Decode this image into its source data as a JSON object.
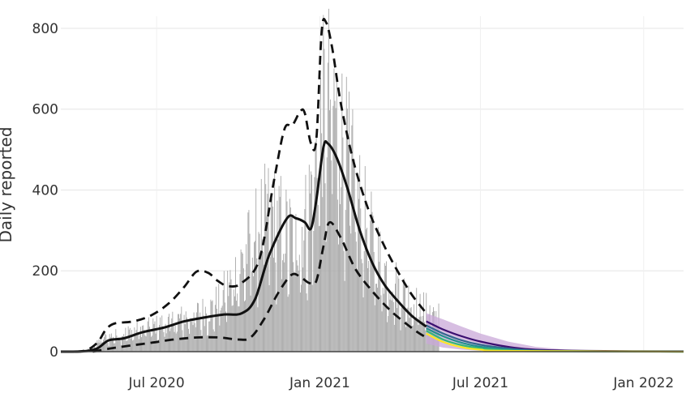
{
  "chart_data": {
    "type": "bar",
    "title": "",
    "xlabel": "",
    "ylabel": "Daily reported",
    "ylim": [
      0,
      830
    ],
    "xlim": [
      "2020-03-15",
      "2022-02-15"
    ],
    "grid": true,
    "legend": "none",
    "x_ticks": [
      {
        "date": "2020-07-01",
        "label": "Jul 2020"
      },
      {
        "date": "2021-01-01",
        "label": "Jan 2021"
      },
      {
        "date": "2021-07-01",
        "label": "Jul 2021"
      },
      {
        "date": "2022-01-01",
        "label": "Jan 2022"
      }
    ],
    "y_ticks": [
      0,
      200,
      400,
      600,
      800
    ],
    "colors": {
      "bars": "#a6a6a6",
      "median": "#111111",
      "bounds": "#111111",
      "forecast_band": "#c9a8d8",
      "forecast_band_inner": "#7fb8c9",
      "forecast_lines": [
        "#3b0f70",
        "#31688e",
        "#21918c",
        "#35b779",
        "#fde725"
      ]
    },
    "observed": {
      "start_date": "2020-03-20",
      "end_date": "2021-05-15",
      "anchors": [
        [
          "2020-03-20",
          0
        ],
        [
          "2020-04-10",
          2
        ],
        [
          "2020-04-20",
          10
        ],
        [
          "2020-05-01",
          35
        ],
        [
          "2020-05-15",
          42
        ],
        [
          "2020-06-01",
          52
        ],
        [
          "2020-07-01",
          68
        ],
        [
          "2020-07-20",
          80
        ],
        [
          "2020-08-10",
          95
        ],
        [
          "2020-09-01",
          110
        ],
        [
          "2020-09-15",
          150
        ],
        [
          "2020-10-01",
          210
        ],
        [
          "2020-10-15",
          280
        ],
        [
          "2020-10-25",
          330
        ],
        [
          "2020-11-05",
          360
        ],
        [
          "2020-11-15",
          340
        ],
        [
          "2020-11-25",
          310
        ],
        [
          "2020-12-05",
          290
        ],
        [
          "2020-12-15",
          330
        ],
        [
          "2020-12-25",
          450
        ],
        [
          "2021-01-05",
          620
        ],
        [
          "2021-01-12",
          660
        ],
        [
          "2021-01-20",
          610
        ],
        [
          "2021-02-01",
          500
        ],
        [
          "2021-02-15",
          380
        ],
        [
          "2021-03-01",
          290
        ],
        [
          "2021-03-15",
          210
        ],
        [
          "2021-04-01",
          160
        ],
        [
          "2021-04-15",
          130
        ],
        [
          "2021-05-01",
          110
        ],
        [
          "2021-05-15",
          95
        ]
      ]
    },
    "median": [
      [
        "2020-03-15",
        0
      ],
      [
        "2020-04-10",
        1
      ],
      [
        "2020-04-25",
        8
      ],
      [
        "2020-05-08",
        28
      ],
      [
        "2020-05-25",
        33
      ],
      [
        "2020-06-15",
        48
      ],
      [
        "2020-07-10",
        60
      ],
      [
        "2020-08-01",
        75
      ],
      [
        "2020-08-25",
        85
      ],
      [
        "2020-09-15",
        92
      ],
      [
        "2020-10-05",
        95
      ],
      [
        "2020-10-20",
        130
      ],
      [
        "2020-11-05",
        240
      ],
      [
        "2020-11-25",
        330
      ],
      [
        "2020-12-05",
        330
      ],
      [
        "2020-12-15",
        320
      ],
      [
        "2020-12-22",
        305
      ],
      [
        "2020-12-28",
        375
      ],
      [
        "2021-01-05",
        505
      ],
      [
        "2021-01-10",
        515
      ],
      [
        "2021-01-20",
        480
      ],
      [
        "2021-02-01",
        405
      ],
      [
        "2021-02-15",
        300
      ],
      [
        "2021-03-01",
        220
      ],
      [
        "2021-03-15",
        165
      ],
      [
        "2021-04-01",
        120
      ],
      [
        "2021-04-15",
        88
      ],
      [
        "2021-05-01",
        62
      ]
    ],
    "upper": [
      [
        "2020-03-15",
        0
      ],
      [
        "2020-04-10",
        2
      ],
      [
        "2020-04-25",
        22
      ],
      [
        "2020-05-05",
        55
      ],
      [
        "2020-05-15",
        70
      ],
      [
        "2020-06-05",
        75
      ],
      [
        "2020-06-25",
        90
      ],
      [
        "2020-07-15",
        120
      ],
      [
        "2020-08-01",
        160
      ],
      [
        "2020-08-15",
        198
      ],
      [
        "2020-08-28",
        195
      ],
      [
        "2020-09-08",
        175
      ],
      [
        "2020-09-20",
        162
      ],
      [
        "2020-10-05",
        170
      ],
      [
        "2020-10-25",
        230
      ],
      [
        "2020-11-10",
        420
      ],
      [
        "2020-11-22",
        550
      ],
      [
        "2020-12-01",
        560
      ],
      [
        "2020-12-10",
        595
      ],
      [
        "2020-12-15",
        590
      ],
      [
        "2020-12-22",
        515
      ],
      [
        "2020-12-28",
        525
      ],
      [
        "2021-01-03",
        790
      ],
      [
        "2021-01-08",
        815
      ],
      [
        "2021-01-15",
        750
      ],
      [
        "2021-01-25",
        610
      ],
      [
        "2021-02-08",
        470
      ],
      [
        "2021-02-25",
        350
      ],
      [
        "2021-03-15",
        260
      ],
      [
        "2021-04-01",
        190
      ],
      [
        "2021-04-15",
        140
      ],
      [
        "2021-05-01",
        95
      ]
    ],
    "lower": [
      [
        "2020-04-20",
        0
      ],
      [
        "2020-05-10",
        8
      ],
      [
        "2020-06-01",
        15
      ],
      [
        "2020-06-25",
        22
      ],
      [
        "2020-07-20",
        30
      ],
      [
        "2020-08-15",
        35
      ],
      [
        "2020-09-10",
        35
      ],
      [
        "2020-10-01",
        30
      ],
      [
        "2020-10-15",
        35
      ],
      [
        "2020-10-30",
        80
      ],
      [
        "2020-11-15",
        145
      ],
      [
        "2020-11-30",
        190
      ],
      [
        "2020-12-10",
        185
      ],
      [
        "2020-12-20",
        170
      ],
      [
        "2020-12-28",
        175
      ],
      [
        "2021-01-05",
        260
      ],
      [
        "2021-01-12",
        320
      ],
      [
        "2021-01-25",
        280
      ],
      [
        "2021-02-10",
        205
      ],
      [
        "2021-03-01",
        150
      ],
      [
        "2021-03-20",
        105
      ],
      [
        "2021-04-05",
        75
      ],
      [
        "2021-04-20",
        50
      ],
      [
        "2021-05-01",
        35
      ]
    ],
    "forecast": {
      "start_date": "2021-05-01",
      "end_date": "2022-02-15",
      "band_upper": [
        [
          "2021-05-01",
          95
        ],
        [
          "2021-05-20",
          80
        ],
        [
          "2021-06-10",
          62
        ],
        [
          "2021-07-01",
          45
        ],
        [
          "2021-08-01",
          25
        ],
        [
          "2021-09-01",
          12
        ],
        [
          "2021-10-01",
          6
        ],
        [
          "2021-11-01",
          3
        ],
        [
          "2022-02-15",
          2
        ]
      ],
      "band_lower": [
        [
          "2021-05-01",
          20
        ],
        [
          "2021-05-20",
          10
        ],
        [
          "2021-06-10",
          5
        ],
        [
          "2021-07-01",
          2
        ],
        [
          "2021-08-01",
          1
        ],
        [
          "2021-09-01",
          0
        ],
        [
          "2022-02-15",
          0
        ]
      ],
      "lines": [
        [
          [
            "2021-05-01",
            75
          ],
          [
            "2021-05-20",
            55
          ],
          [
            "2021-06-10",
            38
          ],
          [
            "2021-07-01",
            25
          ],
          [
            "2021-08-01",
            12
          ],
          [
            "2021-09-01",
            5
          ],
          [
            "2021-11-01",
            2
          ],
          [
            "2022-02-15",
            1
          ]
        ],
        [
          [
            "2021-05-01",
            65
          ],
          [
            "2021-05-20",
            45
          ],
          [
            "2021-06-10",
            28
          ],
          [
            "2021-07-01",
            17
          ],
          [
            "2021-08-01",
            8
          ],
          [
            "2021-09-01",
            3
          ],
          [
            "2021-11-01",
            1
          ],
          [
            "2022-02-15",
            0
          ]
        ],
        [
          [
            "2021-05-01",
            58
          ],
          [
            "2021-05-20",
            38
          ],
          [
            "2021-06-10",
            22
          ],
          [
            "2021-07-01",
            12
          ],
          [
            "2021-08-01",
            5
          ],
          [
            "2021-09-01",
            2
          ],
          [
            "2021-11-01",
            1
          ],
          [
            "2022-02-15",
            0
          ]
        ],
        [
          [
            "2021-05-01",
            52
          ],
          [
            "2021-05-20",
            30
          ],
          [
            "2021-06-10",
            16
          ],
          [
            "2021-07-01",
            8
          ],
          [
            "2021-08-01",
            3
          ],
          [
            "2021-09-01",
            1
          ],
          [
            "2022-02-15",
            0
          ]
        ],
        [
          [
            "2021-05-01",
            45
          ],
          [
            "2021-05-20",
            24
          ],
          [
            "2021-06-10",
            11
          ],
          [
            "2021-07-01",
            5
          ],
          [
            "2021-08-01",
            2
          ],
          [
            "2022-02-15",
            0
          ]
        ]
      ]
    }
  }
}
